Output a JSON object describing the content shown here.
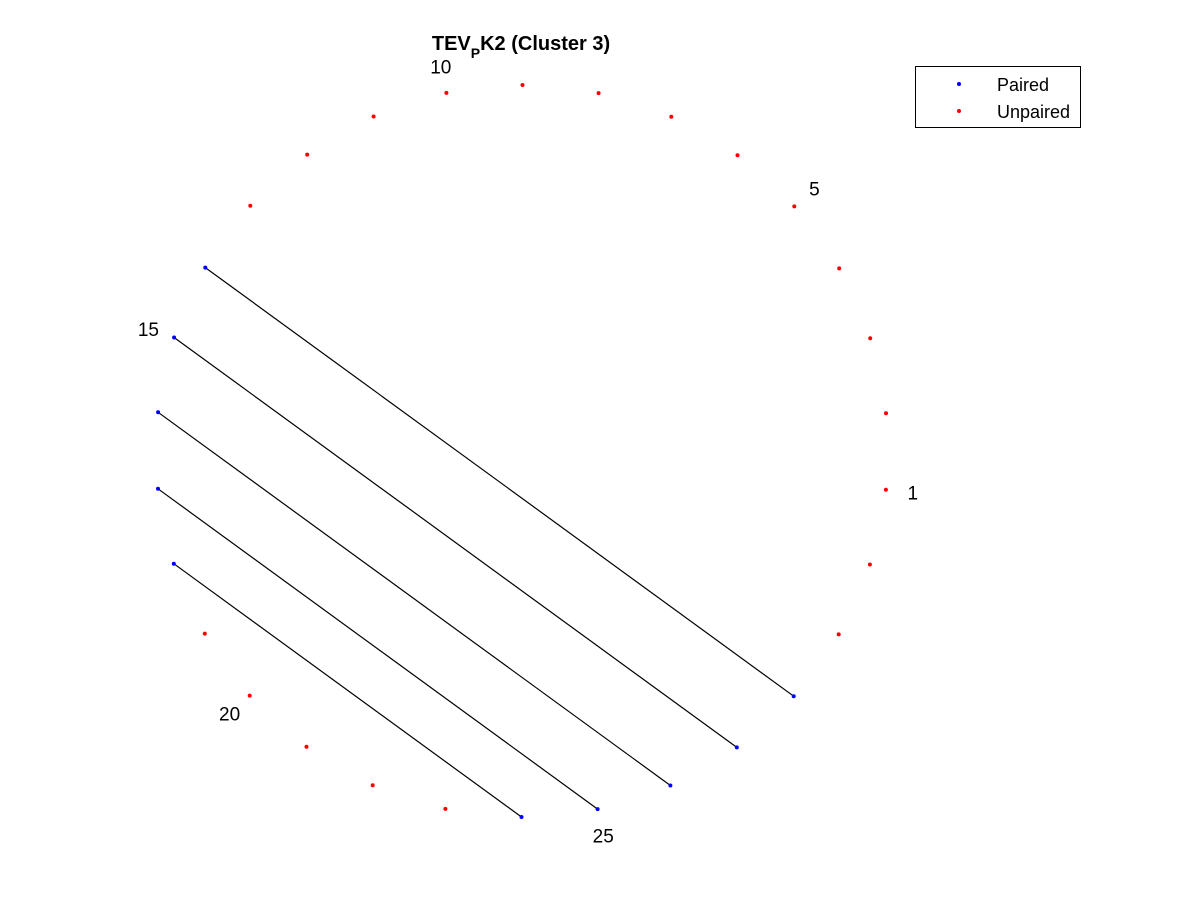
{
  "title": {
    "main": "TEV",
    "subscript": "P",
    "rest": "K2 (Cluster 3)"
  },
  "legend": {
    "placement": "top-right",
    "entries": [
      {
        "label": "Paired",
        "color": "#0000ff"
      },
      {
        "label": "Unpaired",
        "color": "#ff0000"
      }
    ]
  },
  "chart_data": {
    "type": "scatter",
    "description_kind": "arc diagram of nucleotide positions arranged on a circle",
    "n_positions": 30,
    "paired_color": "#0000ff",
    "unpaired_color": "#ff0000",
    "pair_line_color": "#000000",
    "positions": [
      {
        "index": 1,
        "paired": false
      },
      {
        "index": 2,
        "paired": false
      },
      {
        "index": 3,
        "paired": false
      },
      {
        "index": 4,
        "paired": false
      },
      {
        "index": 5,
        "paired": false
      },
      {
        "index": 6,
        "paired": false
      },
      {
        "index": 7,
        "paired": false
      },
      {
        "index": 8,
        "paired": false
      },
      {
        "index": 9,
        "paired": false
      },
      {
        "index": 10,
        "paired": false
      },
      {
        "index": 11,
        "paired": false
      },
      {
        "index": 12,
        "paired": false
      },
      {
        "index": 13,
        "paired": false
      },
      {
        "index": 14,
        "paired": true
      },
      {
        "index": 15,
        "paired": true
      },
      {
        "index": 16,
        "paired": true
      },
      {
        "index": 17,
        "paired": true
      },
      {
        "index": 18,
        "paired": true
      },
      {
        "index": 19,
        "paired": false
      },
      {
        "index": 20,
        "paired": false
      },
      {
        "index": 21,
        "paired": false
      },
      {
        "index": 22,
        "paired": false
      },
      {
        "index": 23,
        "paired": false
      },
      {
        "index": 24,
        "paired": true
      },
      {
        "index": 25,
        "paired": true
      },
      {
        "index": 26,
        "paired": true
      },
      {
        "index": 27,
        "paired": true
      },
      {
        "index": 28,
        "paired": true
      },
      {
        "index": 29,
        "paired": false
      },
      {
        "index": 30,
        "paired": false
      }
    ],
    "pairs": [
      [
        14,
        28
      ],
      [
        15,
        27
      ],
      [
        16,
        26
      ],
      [
        17,
        25
      ],
      [
        18,
        24
      ]
    ],
    "labeled_indices": [
      "1",
      "5",
      "10",
      "15",
      "20",
      "25"
    ]
  }
}
